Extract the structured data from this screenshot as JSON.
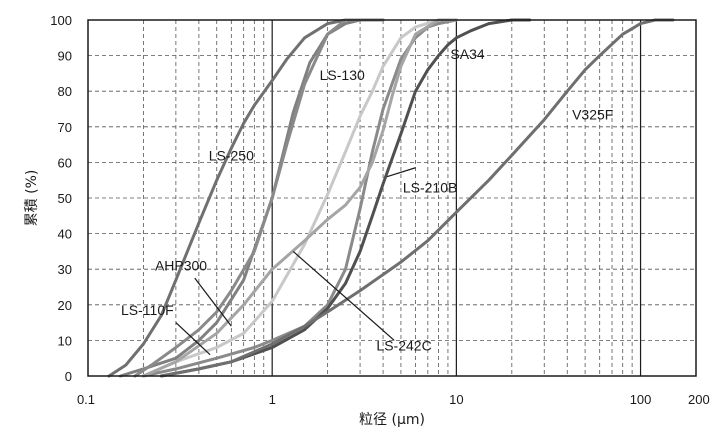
{
  "chart_data": {
    "type": "line",
    "xscale": "log",
    "xlim": [
      0.1,
      200
    ],
    "ylim": [
      0,
      100
    ],
    "xlabel": "粒径 (μm)",
    "ylabel": "累積 (%)",
    "xticks": [
      "0.1",
      "1",
      "10",
      "100",
      "200"
    ],
    "yticks": [
      "0",
      "10",
      "20",
      "30",
      "40",
      "50",
      "60",
      "70",
      "80",
      "90",
      "100"
    ],
    "grid": true,
    "series": [
      {
        "name": "LS-250",
        "color": "#707070",
        "x": [
          0.13,
          0.16,
          0.2,
          0.25,
          0.3,
          0.4,
          0.5,
          0.6,
          0.7,
          0.8,
          1.0,
          1.2,
          1.5,
          2.0,
          2.5,
          3.0,
          4.0
        ],
        "y": [
          0,
          3,
          9,
          17,
          27,
          43,
          55,
          64,
          71,
          76,
          83,
          89,
          95,
          99,
          100,
          100,
          100
        ]
      },
      {
        "name": "LS-130",
        "color": "#808080",
        "x": [
          0.15,
          0.2,
          0.3,
          0.4,
          0.5,
          0.7,
          1.0,
          1.3,
          1.6,
          2.0,
          2.5,
          3.0,
          4.0
        ],
        "y": [
          0,
          2,
          5,
          10,
          15,
          27,
          50,
          74,
          88,
          96,
          99,
          100,
          100
        ]
      },
      {
        "name": "AHP300",
        "color": "#8a8a8a",
        "x": [
          0.18,
          0.22,
          0.3,
          0.4,
          0.5,
          0.6,
          0.8,
          1.0,
          1.2,
          1.5,
          2.0,
          2.5,
          3.0
        ],
        "y": [
          0,
          3,
          8,
          13,
          18,
          24,
          35,
          50,
          65,
          82,
          96,
          100,
          100
        ]
      },
      {
        "name": "LS-110F",
        "color": "#c8c8c8",
        "x": [
          0.2,
          0.3,
          0.5,
          0.7,
          1.0,
          1.5,
          2.0,
          2.5,
          3.0,
          3.5,
          4.0,
          5.0,
          6.0,
          8.0,
          10.0
        ],
        "y": [
          0,
          4,
          8,
          12,
          21,
          37,
          51,
          63,
          73,
          80,
          87,
          95,
          98,
          100,
          100
        ]
      },
      {
        "name": "LS-210B",
        "color": "#8a8a8a",
        "x": [
          0.2,
          0.3,
          0.5,
          0.8,
          1.0,
          1.5,
          2.0,
          2.5,
          3.0,
          3.5,
          4.0,
          5.0,
          6.0,
          7.0,
          8.0,
          10.0
        ],
        "y": [
          0,
          2,
          5,
          8,
          10,
          14,
          20,
          30,
          47,
          63,
          75,
          89,
          95,
          98,
          99,
          100
        ]
      },
      {
        "name": "LS-242C",
        "color": "#a5a5a5",
        "x": [
          0.2,
          0.3,
          0.5,
          0.7,
          1.0,
          1.5,
          2.0,
          2.5,
          3.0,
          3.5,
          4.0,
          4.5,
          5.0,
          6.0,
          8.0,
          10.0
        ],
        "y": [
          0,
          4,
          12,
          20,
          30,
          38,
          44,
          48,
          53,
          60,
          69,
          79,
          87,
          96,
          100,
          100
        ]
      },
      {
        "name": "SA34",
        "color": "#505050",
        "x": [
          0.25,
          0.4,
          0.6,
          1.0,
          1.5,
          2.0,
          2.5,
          3.0,
          3.5,
          4.0,
          5.0,
          6.0,
          7.0,
          8.0,
          9.0,
          10.0,
          12.0,
          15.0,
          20.0,
          25.0
        ],
        "y": [
          0,
          2,
          4,
          8,
          13,
          19,
          26,
          35,
          45,
          54,
          68,
          80,
          86,
          90,
          93,
          95,
          97,
          99,
          100,
          100
        ]
      },
      {
        "name": "V325F",
        "color": "#6f6f6f",
        "x": [
          0.25,
          0.4,
          0.6,
          1.0,
          1.5,
          2.0,
          3.0,
          5.0,
          7.0,
          10.0,
          15.0,
          20.0,
          30.0,
          40.0,
          50.0,
          60.0,
          80.0,
          100.0,
          120.0,
          150.0
        ],
        "y": [
          0,
          2,
          4,
          9,
          14,
          18,
          24,
          32,
          38,
          46,
          55,
          62,
          72,
          80,
          86,
          90,
          96,
          99,
          100,
          100
        ]
      }
    ],
    "annotations": [
      {
        "text": "LS-250",
        "tx": 0.6,
        "ty": 62
      },
      {
        "text": "LS-130",
        "tx": 2.4,
        "ty": 84.5
      },
      {
        "text": "SA34",
        "tx": 11.5,
        "ty": 90.5
      },
      {
        "text": "V325F",
        "tx": 55,
        "ty": 73.5
      },
      {
        "text": "LS-210B",
        "tx": 7.2,
        "ty": 53,
        "lx": [
          4.2,
          6.0
        ],
        "ly": [
          56,
          58.5
        ]
      },
      {
        "text": "AHP300",
        "tx": 0.32,
        "ty": 31,
        "lx": [
          0.38,
          0.6
        ],
        "ly": [
          27.5,
          14
        ]
      },
      {
        "text": "LS-110F",
        "tx": 0.21,
        "ty": 18.5,
        "lx": [
          0.3,
          0.46
        ],
        "ly": [
          15,
          6
        ]
      },
      {
        "text": "LS-242C",
        "tx": 5.2,
        "ty": 8.5,
        "lx": [
          1.3,
          4.6
        ],
        "ly": [
          35,
          10
        ]
      }
    ]
  }
}
